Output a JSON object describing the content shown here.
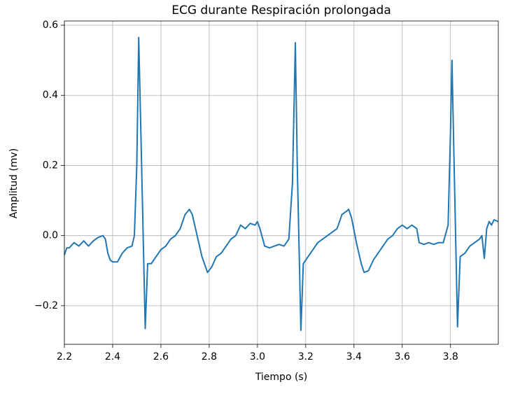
{
  "chart_data": {
    "type": "line",
    "title": "ECG durante Respiración prolongada",
    "xlabel": "Tiempo (s)",
    "ylabel": "Amplitud (mv)",
    "color": "#1f77b4",
    "grid": true,
    "xlim": [
      2.2,
      3.998
    ],
    "ylim": [
      -0.31,
      0.612
    ],
    "xticks": [
      2.2,
      2.4,
      2.6,
      2.8,
      {
        "value": 3.0,
        "label": "3.0"
      },
      3.2,
      3.4,
      3.6,
      3.8
    ],
    "yticks": [
      {
        "value": -0.2,
        "label": "−0.2"
      },
      {
        "value": 0,
        "label": "0.0"
      },
      0.2,
      0.4,
      0.6
    ],
    "x": [
      2.2,
      2.21,
      2.22,
      2.24,
      2.26,
      2.28,
      2.3,
      2.32,
      2.34,
      2.36,
      2.37,
      2.38,
      2.39,
      2.4,
      2.42,
      2.44,
      2.46,
      2.48,
      2.49,
      2.5,
      2.508,
      2.52,
      2.535,
      2.545,
      2.56,
      2.58,
      2.6,
      2.62,
      2.64,
      2.66,
      2.68,
      2.7,
      2.718,
      2.73,
      2.75,
      2.77,
      2.793,
      2.81,
      2.83,
      2.85,
      2.87,
      2.89,
      2.91,
      2.93,
      2.95,
      2.97,
      2.99,
      3.0,
      3.01,
      3.03,
      3.05,
      3.07,
      3.09,
      3.11,
      3.13,
      3.145,
      3.157,
      3.165,
      3.18,
      3.19,
      3.21,
      3.23,
      3.25,
      3.27,
      3.29,
      3.31,
      3.33,
      3.35,
      3.37,
      3.378,
      3.39,
      3.41,
      3.43,
      3.442,
      3.46,
      3.48,
      3.5,
      3.52,
      3.54,
      3.56,
      3.58,
      3.6,
      3.62,
      3.64,
      3.66,
      3.67,
      3.69,
      3.71,
      3.73,
      3.75,
      3.77,
      3.79,
      3.8,
      3.806,
      3.815,
      3.829,
      3.84,
      3.86,
      3.88,
      3.9,
      3.92,
      3.93,
      3.94,
      3.95,
      3.96,
      3.97,
      3.98,
      3.998
    ],
    "values": [
      -0.055,
      -0.035,
      -0.035,
      -0.02,
      -0.03,
      -0.015,
      -0.03,
      -0.015,
      -0.005,
      0.0,
      -0.01,
      -0.05,
      -0.07,
      -0.075,
      -0.075,
      -0.05,
      -0.035,
      -0.03,
      0.0,
      0.2,
      0.565,
      0.2,
      -0.265,
      -0.08,
      -0.08,
      -0.06,
      -0.04,
      -0.03,
      -0.01,
      0.0,
      0.02,
      0.06,
      0.075,
      0.06,
      0.0,
      -0.06,
      -0.105,
      -0.09,
      -0.06,
      -0.05,
      -0.03,
      -0.01,
      0.0,
      0.03,
      0.02,
      0.035,
      0.03,
      0.04,
      0.02,
      -0.03,
      -0.035,
      -0.03,
      -0.025,
      -0.03,
      -0.01,
      0.15,
      0.55,
      0.2,
      -0.27,
      -0.08,
      -0.06,
      -0.04,
      -0.02,
      -0.01,
      0.0,
      0.01,
      0.02,
      0.06,
      0.07,
      0.075,
      0.05,
      -0.02,
      -0.08,
      -0.105,
      -0.1,
      -0.07,
      -0.05,
      -0.03,
      -0.01,
      0.0,
      0.02,
      0.03,
      0.02,
      0.03,
      0.02,
      -0.02,
      -0.025,
      -0.02,
      -0.025,
      -0.02,
      -0.02,
      0.03,
      0.3,
      0.5,
      0.2,
      -0.26,
      -0.06,
      -0.05,
      -0.03,
      -0.02,
      -0.01,
      0.0,
      -0.065,
      0.02,
      0.04,
      0.03,
      0.045,
      0.04
    ]
  }
}
